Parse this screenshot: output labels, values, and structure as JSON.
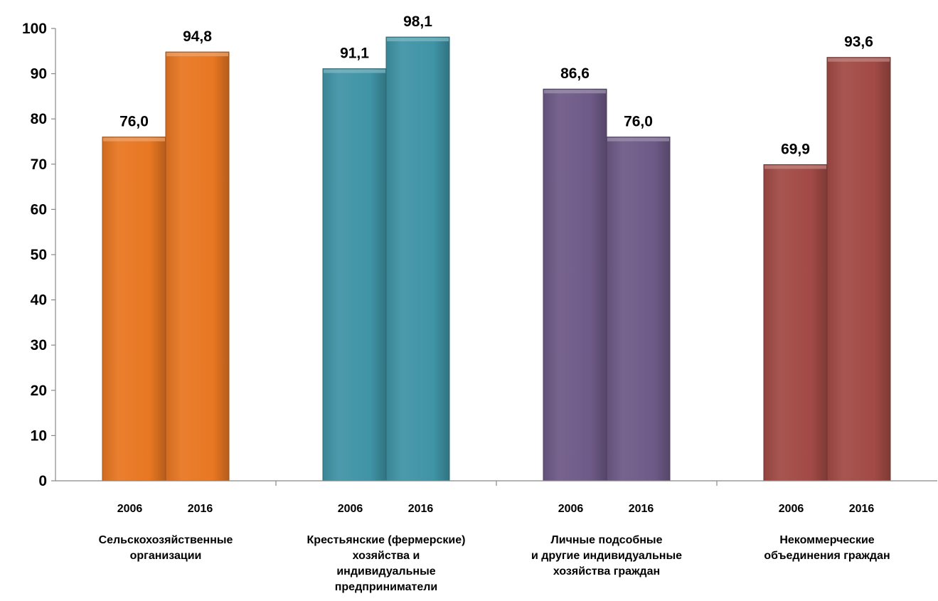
{
  "chart_data": {
    "type": "bar",
    "title": "",
    "xlabel": "",
    "ylabel": "",
    "ylim": [
      0,
      100
    ],
    "yticks": [
      "0",
      "10",
      "20",
      "30",
      "40",
      "50",
      "60",
      "70",
      "80",
      "90",
      "100"
    ],
    "grid": false,
    "legend": "none",
    "years": [
      "2006",
      "2016"
    ],
    "groups": [
      {
        "label_lines": [
          "Сельскохозяйственные",
          "организации"
        ],
        "color": "#E87722",
        "values": [
          76.0,
          94.8
        ],
        "value_labels": [
          "76,0",
          "94,8"
        ]
      },
      {
        "label_lines": [
          "Крестьянские (фермерские)",
          "хозяйства и",
          "индивидуальные",
          "предприниматели"
        ],
        "color": "#3F94A6",
        "values": [
          91.1,
          98.1
        ],
        "value_labels": [
          "91,1",
          "98,1"
        ]
      },
      {
        "label_lines": [
          "Личные подсобные",
          "и другие индивидуальные",
          "хозяйства граждан"
        ],
        "color": "#6E5A87",
        "values": [
          86.6,
          76.0
        ],
        "value_labels": [
          "86,6",
          "76,0"
        ]
      },
      {
        "label_lines": [
          "Некоммерческие",
          "объединения граждан"
        ],
        "color": "#A24A45",
        "values": [
          69.9,
          93.6
        ],
        "value_labels": [
          "69,9",
          "93,6"
        ]
      }
    ]
  }
}
